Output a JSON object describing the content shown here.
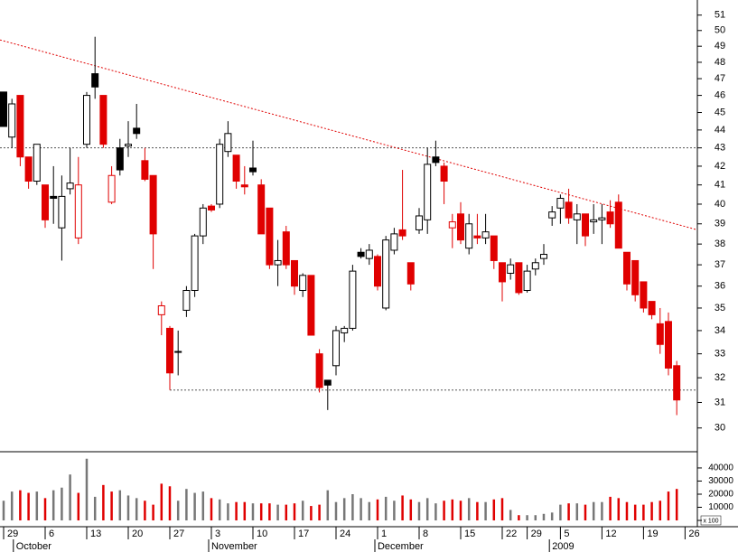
{
  "chart_data": {
    "type": "candlestick",
    "open": [
      46.2,
      43.6,
      46.0,
      42.5,
      41.2,
      41.0,
      40.4,
      38.8,
      40.8,
      38.3,
      43.2,
      47.3,
      46.0,
      40.1,
      43.0,
      43.1,
      44.1,
      42.3,
      41.5,
      34.7,
      34.1,
      33.1,
      34.9,
      35.8,
      38.4,
      39.9,
      40.0,
      42.8,
      42.6,
      41.0,
      41.9,
      41.0,
      39.8,
      37.0,
      38.6,
      37.2,
      35.8,
      36.5,
      33.0,
      31.9,
      32.5,
      33.9,
      34.1,
      37.6,
      37.3,
      37.4,
      35.0,
      37.7,
      38.7,
      37.1,
      38.7,
      39.2,
      42.5,
      42.0,
      38.8,
      39.5,
      37.8,
      38.4,
      38.3,
      38.4,
      37.1,
      36.6,
      37.1,
      35.8,
      36.8,
      37.3,
      39.3,
      39.8,
      40.1,
      39.2,
      39.5,
      39.1,
      39.2,
      39.6,
      40.1,
      37.6,
      37.2,
      36.2,
      35.3,
      34.3,
      34.4,
      32.5
    ],
    "high": [
      46.2,
      45.8,
      46.0,
      42.5,
      43.2,
      41.0,
      42.0,
      41.5,
      43.0,
      42.5,
      46.2,
      49.6,
      46.0,
      42.0,
      43.5,
      44.5,
      45.5,
      43.0,
      41.5,
      35.3,
      34.2,
      34.0,
      36.0,
      38.5,
      40.0,
      40.0,
      43.5,
      44.5,
      42.6,
      42.0,
      43.4,
      41.3,
      39.8,
      38.2,
      38.9,
      37.2,
      36.6,
      36.5,
      33.2,
      31.9,
      34.2,
      34.2,
      37.0,
      37.8,
      38.0,
      37.5,
      38.4,
      38.8,
      41.8,
      37.1,
      39.8,
      43.0,
      43.4,
      42.2,
      39.5,
      40.1,
      39.5,
      39.5,
      39.5,
      38.4,
      37.1,
      37.3,
      37.1,
      37.0,
      37.3,
      38.0,
      39.9,
      40.5,
      40.8,
      40.0,
      39.5,
      40.0,
      40.0,
      40.2,
      40.5,
      37.6,
      37.2,
      36.2,
      35.3,
      35.0,
      34.8,
      32.7
    ],
    "low": [
      44.2,
      43.0,
      42.0,
      40.8,
      41.0,
      38.8,
      39.0,
      37.2,
      40.5,
      38.0,
      43.0,
      45.8,
      43.0,
      40.0,
      41.5,
      42.5,
      43.5,
      41.2,
      36.8,
      33.8,
      31.5,
      32.1,
      34.6,
      35.5,
      38.0,
      39.6,
      39.8,
      42.5,
      40.8,
      40.5,
      41.5,
      38.5,
      36.8,
      36.0,
      36.8,
      35.6,
      35.5,
      33.8,
      31.4,
      30.7,
      32.1,
      33.5,
      34.0,
      37.3,
      37.0,
      35.8,
      34.9,
      37.5,
      38.2,
      35.8,
      38.5,
      38.5,
      42.0,
      40.0,
      37.8,
      38.0,
      37.5,
      38.0,
      38.0,
      36.8,
      35.3,
      36.3,
      35.6,
      35.7,
      36.5,
      37.0,
      38.9,
      39.0,
      39.0,
      38.0,
      37.9,
      38.5,
      38.0,
      38.8,
      37.8,
      35.8,
      35.3,
      34.8,
      34.5,
      33.0,
      32.1,
      30.5
    ],
    "close": [
      44.2,
      45.5,
      42.5,
      41.2,
      43.2,
      39.2,
      40.3,
      40.4,
      41.1,
      41.0,
      46.0,
      46.5,
      43.2,
      41.5,
      41.8,
      43.2,
      43.8,
      41.3,
      38.5,
      35.1,
      32.2,
      33.1,
      35.8,
      38.4,
      39.8,
      39.7,
      43.2,
      43.8,
      41.2,
      40.9,
      41.7,
      38.5,
      37.0,
      37.2,
      37.0,
      36.0,
      36.5,
      33.8,
      31.6,
      31.7,
      34.0,
      34.1,
      36.7,
      37.4,
      37.7,
      36.0,
      38.2,
      38.5,
      38.4,
      36.1,
      39.4,
      42.1,
      42.2,
      41.2,
      39.1,
      38.2,
      39.0,
      38.3,
      38.6,
      37.2,
      36.2,
      37.0,
      35.7,
      36.7,
      37.1,
      37.5,
      39.6,
      40.3,
      39.3,
      39.5,
      38.4,
      39.2,
      39.3,
      39.0,
      37.8,
      36.1,
      35.6,
      35.0,
      34.7,
      33.4,
      32.4,
      31.1
    ],
    "volume": [
      15000,
      22000,
      23000,
      21000,
      22000,
      17000,
      23000,
      25000,
      35000,
      21000,
      47000,
      18000,
      27000,
      22000,
      23000,
      19000,
      17000,
      15000,
      12000,
      28000,
      26000,
      15000,
      24000,
      21000,
      22000,
      17000,
      16000,
      13000,
      14000,
      14000,
      13000,
      13000,
      13000,
      12000,
      12000,
      13000,
      15000,
      11000,
      12000,
      23000,
      14000,
      17000,
      20000,
      17000,
      14000,
      16000,
      18000,
      15000,
      19000,
      16000,
      14000,
      17000,
      13000,
      15000,
      16000,
      15000,
      17000,
      14000,
      14000,
      16000,
      17000,
      8000,
      4000,
      4000,
      4000,
      5000,
      6000,
      12000,
      13000,
      13000,
      12000,
      14000,
      14000,
      18000,
      17000,
      14000,
      12000,
      12000,
      14000,
      15000,
      22000,
      24000
    ],
    "log_scale": true,
    "ylim": [
      29.2,
      52
    ],
    "yticks": [
      30,
      31,
      32,
      33,
      34,
      35,
      36,
      37,
      38,
      39,
      40,
      41,
      42,
      43,
      44,
      45,
      46,
      47,
      48,
      49,
      50,
      51
    ],
    "volume_ylim": [
      -4800,
      50300
    ],
    "volume_ticks": [
      0,
      10000,
      20000,
      30000,
      40000
    ],
    "volume_unit": "x 100",
    "xlim": [
      -0.435,
      83.48
    ],
    "xticks": [
      {
        "value": 0,
        "label": "29"
      },
      {
        "value": 5,
        "label": "6"
      },
      {
        "value": 10,
        "label": "13"
      },
      {
        "value": 15,
        "label": "20"
      },
      {
        "value": 20,
        "label": "27"
      },
      {
        "value": 25,
        "label": "3"
      },
      {
        "value": 30,
        "label": "10"
      },
      {
        "value": 35,
        "label": "17"
      },
      {
        "value": 40,
        "label": "24"
      },
      {
        "value": 45,
        "label": "1"
      },
      {
        "value": 50,
        "label": "8"
      },
      {
        "value": 55,
        "label": "15"
      },
      {
        "value": 60,
        "label": "22"
      },
      {
        "value": 63,
        "label": "29"
      },
      {
        "value": 67,
        "label": "5"
      },
      {
        "value": 72,
        "label": "12"
      },
      {
        "value": 77,
        "label": "19"
      },
      {
        "value": 82,
        "label": "26"
      }
    ],
    "month_labels": [
      {
        "value": 1.5,
        "label": "October"
      },
      {
        "value": 25,
        "label": "November"
      },
      {
        "value": 45,
        "label": "December"
      },
      {
        "value": 66,
        "label": "2009"
      }
    ],
    "trendline": {
      "x": [
        -0.435,
        83.48
      ],
      "y": [
        49.4,
        38.7
      ],
      "color": "#e00000"
    },
    "hlines": [
      {
        "value": 43,
        "from": -0.435
      },
      {
        "value": 31.5,
        "from": 20
      }
    ],
    "down_color": "#e00000",
    "up_color": "#000000",
    "volume_up_color": "#777777"
  }
}
